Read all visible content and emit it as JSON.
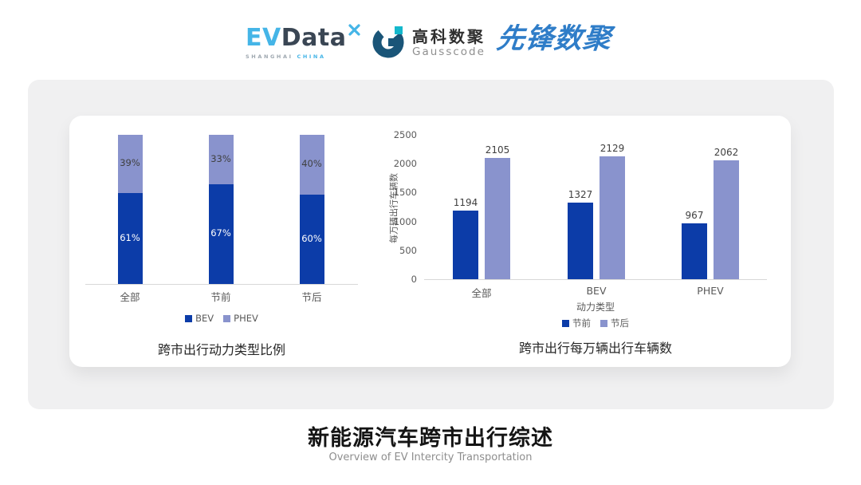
{
  "header": {
    "evdata": {
      "ev": "EV",
      "data": "Data",
      "sub_left": "SHANGHAI ",
      "sub_right": "CHINA"
    },
    "gausscode": {
      "name_cn": "高科数聚",
      "name_en": "Gausscode"
    },
    "pioneer": {
      "name": "先锋数聚"
    }
  },
  "colors": {
    "bev_dark_blue": "#0C3CA8",
    "phev_periwinkle": "#8993CD",
    "card_gray": "#F0F0F1",
    "evdata_accent": "#45B5E7",
    "gausscode_navy": "#1A5578",
    "gausscode_cyan": "#14B8CC",
    "pioneer_blue": "#2F7DC8"
  },
  "chart_data": [
    {
      "type": "bar",
      "variant": "stacked-percent",
      "title": "跨市出行动力类型比例",
      "categories": [
        "全部",
        "节前",
        "节后"
      ],
      "series": [
        {
          "name": "BEV",
          "color": "#0C3CA8",
          "values": [
            61,
            67,
            60
          ],
          "labels": [
            "61%",
            "67%",
            "60%"
          ],
          "label_color": "#FFFFFF"
        },
        {
          "name": "PHEV",
          "color": "#8993CD",
          "values": [
            39,
            33,
            40
          ],
          "labels": [
            "39%",
            "33%",
            "40%"
          ],
          "label_color": "#3F3F3F"
        }
      ],
      "ylim": [
        0,
        100
      ],
      "grid": false,
      "legend_position": "bottom"
    },
    {
      "type": "bar",
      "variant": "grouped",
      "title": "跨市出行每万辆出行车辆数",
      "categories": [
        "全部",
        "BEV",
        "PHEV"
      ],
      "xlabel": "动力类型",
      "ylabel": "每万辆出行车辆数",
      "yticks": [
        0,
        500,
        1000,
        1500,
        2000,
        2500
      ],
      "ylim": [
        0,
        2500
      ],
      "grid": false,
      "series": [
        {
          "name": "节前",
          "color": "#0C3CA8",
          "values": [
            1194,
            1327,
            967
          ]
        },
        {
          "name": "节后",
          "color": "#8993CD",
          "values": [
            2105,
            2129,
            2062
          ]
        }
      ],
      "legend_position": "bottom"
    }
  ],
  "footer": {
    "title": "新能源汽车跨市出行综述",
    "subtitle": "Overview of EV Intercity Transportation"
  }
}
